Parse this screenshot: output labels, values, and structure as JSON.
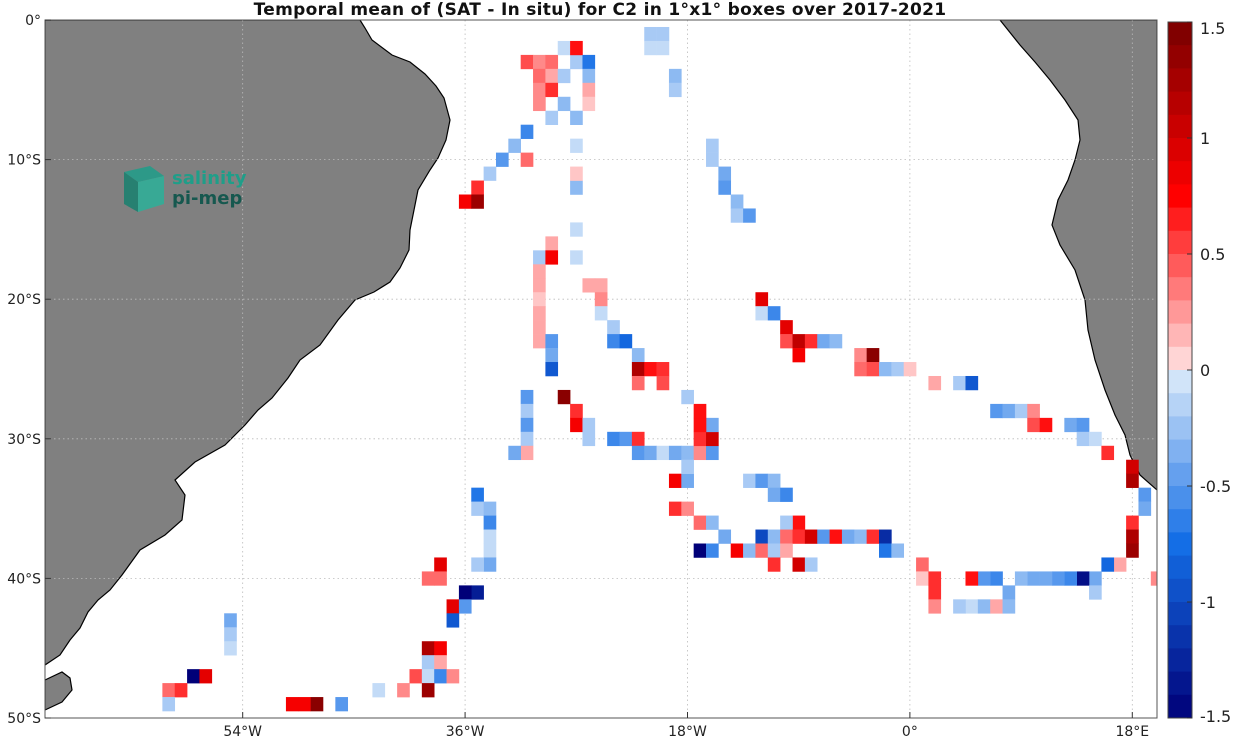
{
  "title": "Temporal mean of (SAT - In situ) for C2 in 1°x1° boxes over 2017-2021",
  "logo": {
    "line1": "salinity",
    "line2": "pi-mep"
  },
  "colors": {
    "land": "#808080",
    "ocean": "#ffffff",
    "grid": "#bbbbbb",
    "logo_teal": "#1f9e89",
    "logo_dark": "#16584f"
  },
  "chart_data": {
    "type": "heatmap",
    "title": "Temporal mean of (SAT - In situ) for C2 in 1°x1° boxes over 2017-2021",
    "x_extent": [
      -70,
      20
    ],
    "y_extent": [
      -50,
      0
    ],
    "x_ticks": [
      {
        "v": -54,
        "label": "54°W"
      },
      {
        "v": -36,
        "label": "36°W"
      },
      {
        "v": -18,
        "label": "18°W"
      },
      {
        "v": 0,
        "label": "0°"
      },
      {
        "v": 18,
        "label": "18°E"
      }
    ],
    "y_ticks": [
      {
        "v": 0,
        "label": "0°"
      },
      {
        "v": -10,
        "label": "10°S"
      },
      {
        "v": -20,
        "label": "20°S"
      },
      {
        "v": -30,
        "label": "30°S"
      },
      {
        "v": -40,
        "label": "40°S"
      },
      {
        "v": -50,
        "label": "50°S"
      }
    ],
    "colorbar": {
      "min": -1.5,
      "max": 1.5,
      "n_levels": 30,
      "ticks": [
        {
          "v": 1.5,
          "label": "1.5"
        },
        {
          "v": 1,
          "label": "1"
        },
        {
          "v": 0.5,
          "label": "0.5"
        },
        {
          "v": 0,
          "label": "0"
        },
        {
          "v": -0.5,
          "label": "-0.5"
        },
        {
          "v": -1,
          "label": "-1"
        },
        {
          "v": -1.5,
          "label": "-1.5"
        }
      ]
    },
    "grid": true,
    "cells": [
      [
        -31,
        -3,
        0.5
      ],
      [
        -30,
        -3,
        0.3
      ],
      [
        -29,
        -3,
        0.4
      ],
      [
        -28,
        -2,
        -0.1
      ],
      [
        -27,
        -3,
        -0.2
      ],
      [
        -27,
        -2,
        0.7
      ],
      [
        -26,
        -3,
        -0.7
      ],
      [
        -26,
        -4,
        -0.3
      ],
      [
        -30,
        -4,
        0.4
      ],
      [
        -29,
        -4,
        0.2
      ],
      [
        -28,
        -4,
        -0.2
      ],
      [
        -26,
        -5,
        0.2
      ],
      [
        -26,
        -6,
        0.1
      ],
      [
        -30,
        -5,
        0.3
      ],
      [
        -29,
        -5,
        0.6
      ],
      [
        -30,
        -6,
        0.3
      ],
      [
        -28,
        -6,
        -0.3
      ],
      [
        -29,
        -7,
        -0.2
      ],
      [
        -27,
        -7,
        -0.3
      ],
      [
        -27,
        -9,
        -0.1
      ],
      [
        -31,
        -8,
        -0.6
      ],
      [
        -32,
        -9,
        -0.3
      ],
      [
        -31,
        -10,
        0.4
      ],
      [
        -33,
        -10,
        -0.5
      ],
      [
        -34,
        -11,
        -0.2
      ],
      [
        -35,
        -12,
        0.6
      ],
      [
        -36,
        -13,
        0.8
      ],
      [
        -35,
        -13,
        1.3
      ],
      [
        -21,
        -1,
        -0.2
      ],
      [
        -21,
        -2,
        -0.1
      ],
      [
        -19,
        -4,
        -0.3
      ],
      [
        -19,
        -5,
        -0.2
      ],
      [
        -16,
        -9,
        -0.2
      ],
      [
        -16,
        -10,
        -0.2
      ],
      [
        -15,
        -11,
        -0.4
      ],
      [
        -15,
        -12,
        -0.5
      ],
      [
        -14,
        -13,
        -0.3
      ],
      [
        -14,
        -14,
        -0.2
      ],
      [
        -13,
        -14,
        -0.5
      ],
      [
        -27,
        -15,
        -0.1
      ],
      [
        -27,
        -17,
        -0.1
      ],
      [
        -27,
        -12,
        -0.3
      ],
      [
        -27,
        -11,
        0.1
      ],
      [
        -29,
        -16,
        0.2
      ],
      [
        -30,
        -17,
        -0.2
      ],
      [
        -29,
        -17,
        0.8
      ],
      [
        -30,
        -18,
        0.2
      ],
      [
        -30,
        -19,
        0.2
      ],
      [
        -30,
        -20,
        0.1
      ],
      [
        -30,
        -21,
        0.2
      ],
      [
        -30,
        -22,
        0.2
      ],
      [
        -30,
        -23,
        0.2
      ],
      [
        -26,
        -19,
        0.2
      ],
      [
        -25,
        -19,
        0.2
      ],
      [
        -25,
        -20,
        0.3
      ],
      [
        -25,
        -21,
        -0.1
      ],
      [
        -24,
        -22,
        -0.2
      ],
      [
        -24,
        -23,
        -0.6
      ],
      [
        -23,
        -23,
        -0.8
      ],
      [
        -22,
        -24,
        -0.3
      ],
      [
        -22,
        -25,
        1.2
      ],
      [
        -21,
        -25,
        0.7
      ],
      [
        -20,
        -25,
        0.6
      ],
      [
        -20,
        -26,
        0.5
      ],
      [
        -22,
        -26,
        0.4
      ],
      [
        -29,
        -23,
        -0.5
      ],
      [
        -29,
        -24,
        -0.4
      ],
      [
        -29,
        -25,
        -0.9
      ],
      [
        -12,
        -20,
        0.9
      ],
      [
        -12,
        -21,
        -0.1
      ],
      [
        -11,
        -21,
        -0.6
      ],
      [
        -10,
        -22,
        0.9
      ],
      [
        -10,
        -23,
        0.5
      ],
      [
        -9,
        -23,
        1.1
      ],
      [
        -8,
        -23,
        0.6
      ],
      [
        -7,
        -23,
        -0.4
      ],
      [
        -6,
        -23,
        -0.3
      ],
      [
        -9,
        -24,
        0.8
      ],
      [
        -4,
        -24,
        0.3
      ],
      [
        -3,
        -24,
        1.4
      ],
      [
        -4,
        -25,
        0.4
      ],
      [
        -3,
        -25,
        0.5
      ],
      [
        -2,
        -25,
        -0.3
      ],
      [
        -1,
        -25,
        -0.2
      ],
      [
        0,
        -25,
        0.1
      ],
      [
        2,
        -26,
        0.2
      ],
      [
        4,
        -26,
        -0.2
      ],
      [
        5,
        -26,
        -0.9
      ],
      [
        7,
        -28,
        -0.5
      ],
      [
        8,
        -28,
        -0.4
      ],
      [
        9,
        -28,
        -0.2
      ],
      [
        10,
        -28,
        0.3
      ],
      [
        10,
        -29,
        0.5
      ],
      [
        11,
        -29,
        0.7
      ],
      [
        13,
        -29,
        -0.4
      ],
      [
        14,
        -29,
        -0.5
      ],
      [
        14,
        -30,
        -0.2
      ],
      [
        15,
        -30,
        -0.1
      ],
      [
        16,
        -31,
        0.6
      ],
      [
        18,
        -32,
        1.0
      ],
      [
        18,
        -33,
        1.2
      ],
      [
        19,
        -34,
        -0.5
      ],
      [
        19,
        -35,
        -0.4
      ],
      [
        18,
        -36,
        0.6
      ],
      [
        18,
        -37,
        1.2
      ],
      [
        18,
        -38,
        1.3
      ],
      [
        17,
        -39,
        0.2
      ],
      [
        16,
        -39,
        -0.8
      ],
      [
        15,
        -40,
        -0.4
      ],
      [
        14,
        -40,
        -1.4
      ],
      [
        13,
        -40,
        -0.6
      ],
      [
        12,
        -40,
        -0.5
      ],
      [
        11,
        -40,
        -0.4
      ],
      [
        10,
        -40,
        -0.4
      ],
      [
        9,
        -40,
        -0.3
      ],
      [
        8,
        -41,
        -0.4
      ],
      [
        7,
        -40,
        -0.6
      ],
      [
        6,
        -40,
        -0.5
      ],
      [
        5,
        -40,
        0.7
      ],
      [
        15,
        -41,
        -0.2
      ],
      [
        5,
        -42,
        -0.1
      ],
      [
        6,
        -42,
        -0.3
      ],
      [
        4,
        -42,
        -0.2
      ],
      [
        7,
        -42,
        0.2
      ],
      [
        8,
        -42,
        -0.3
      ],
      [
        1,
        -39,
        0.4
      ],
      [
        1,
        -40,
        0.1
      ],
      [
        2,
        -40,
        0.6
      ],
      [
        2,
        -41,
        0.6
      ],
      [
        2,
        -42,
        0.3
      ],
      [
        20,
        -40,
        0.3
      ],
      [
        -31,
        -27,
        -0.5
      ],
      [
        -31,
        -28,
        -0.2
      ],
      [
        -31,
        -29,
        -0.5
      ],
      [
        -31,
        -30,
        -0.2
      ],
      [
        -31,
        -31,
        0.2
      ],
      [
        -32,
        -31,
        -0.4
      ],
      [
        -28,
        -27,
        1.4
      ],
      [
        -27,
        -28,
        0.6
      ],
      [
        -27,
        -29,
        0.8
      ],
      [
        -26,
        -29,
        -0.2
      ],
      [
        -26,
        -30,
        -0.2
      ],
      [
        -24,
        -30,
        -0.6
      ],
      [
        -23,
        -30,
        -0.5
      ],
      [
        -22,
        -30,
        0.6
      ],
      [
        -22,
        -31,
        -0.5
      ],
      [
        -21,
        -31,
        -0.4
      ],
      [
        -20,
        -31,
        -0.1
      ],
      [
        -19,
        -31,
        -0.4
      ],
      [
        -18,
        -31,
        -0.3
      ],
      [
        -17,
        -31,
        0.3
      ],
      [
        -16,
        -31,
        -0.5
      ],
      [
        -17,
        -30,
        0.6
      ],
      [
        -16,
        -30,
        1.0
      ],
      [
        -16,
        -29,
        -0.4
      ],
      [
        -17,
        -29,
        0.7
      ],
      [
        -17,
        -28,
        0.7
      ],
      [
        -18,
        -27,
        -0.2
      ],
      [
        -19,
        -33,
        0.8
      ],
      [
        -18,
        -33,
        -0.4
      ],
      [
        -18,
        -32,
        -0.2
      ],
      [
        -19,
        -35,
        0.6
      ],
      [
        -18,
        -35,
        0.3
      ],
      [
        -17,
        -36,
        0.4
      ],
      [
        -16,
        -36,
        -0.3
      ],
      [
        -15,
        -37,
        -0.4
      ],
      [
        -35,
        -34,
        -0.7
      ],
      [
        -35,
        -35,
        -0.2
      ],
      [
        -34,
        -35,
        -0.3
      ],
      [
        -34,
        -36,
        -0.6
      ],
      [
        -34,
        -37,
        -0.1
      ],
      [
        -34,
        -38,
        -0.1
      ],
      [
        -34,
        -39,
        -0.4
      ],
      [
        -35,
        -39,
        -0.2
      ],
      [
        -38,
        -39,
        0.9
      ],
      [
        -39,
        -40,
        0.4
      ],
      [
        -38,
        -40,
        0.4
      ],
      [
        -35,
        -41,
        -1.3
      ],
      [
        -36,
        -41,
        -1.5
      ],
      [
        -37,
        -42,
        0.9
      ],
      [
        -36,
        -42,
        -0.5
      ],
      [
        -37,
        -43,
        -0.9
      ],
      [
        -55,
        -43,
        -0.4
      ],
      [
        -55,
        -44,
        -0.2
      ],
      [
        -55,
        -45,
        -0.1
      ],
      [
        -58,
        -47,
        -1.5
      ],
      [
        -57,
        -47,
        0.9
      ],
      [
        -60,
        -48,
        0.4
      ],
      [
        -59,
        -48,
        0.6
      ],
      [
        -60,
        -49,
        -0.2
      ],
      [
        -39,
        -45,
        1.2
      ],
      [
        -38,
        -45,
        0.8
      ],
      [
        -39,
        -46,
        -0.2
      ],
      [
        -38,
        -46,
        0.2
      ],
      [
        -40,
        -47,
        0.5
      ],
      [
        -39,
        -47,
        -0.1
      ],
      [
        -38,
        -47,
        -0.6
      ],
      [
        -37,
        -47,
        0.3
      ],
      [
        -41,
        -48,
        0.3
      ],
      [
        -39,
        -48,
        1.3
      ],
      [
        -43,
        -48,
        -0.1
      ],
      [
        -50,
        -49,
        0.8
      ],
      [
        -49,
        -49,
        0.8
      ],
      [
        -48,
        -49,
        1.4
      ],
      [
        -46,
        -49,
        -0.5
      ],
      [
        -13,
        -33,
        -0.2
      ],
      [
        -12,
        -33,
        -0.5
      ],
      [
        -11,
        -33,
        -0.3
      ],
      [
        -11,
        -34,
        -0.4
      ],
      [
        -10,
        -34,
        -0.6
      ],
      [
        -9,
        -36,
        0.7
      ],
      [
        -10,
        -36,
        -0.2
      ],
      [
        -12,
        -37,
        -1.0
      ],
      [
        -11,
        -37,
        -0.3
      ],
      [
        -10,
        -37,
        0.4
      ],
      [
        -9,
        -37,
        0.6
      ],
      [
        -8,
        -37,
        1.0
      ],
      [
        -7,
        -37,
        -0.5
      ],
      [
        -6,
        -37,
        0.7
      ],
      [
        -5,
        -37,
        -0.4
      ],
      [
        -4,
        -37,
        -0.3
      ],
      [
        -3,
        -37,
        0.6
      ],
      [
        -2,
        -37,
        -1.2
      ],
      [
        -2,
        -38,
        -0.7
      ],
      [
        -1,
        -38,
        -0.3
      ],
      [
        -17,
        -38,
        -1.5
      ],
      [
        -16,
        -38,
        -0.6
      ],
      [
        -14,
        -38,
        0.8
      ],
      [
        -13,
        -38,
        -0.3
      ],
      [
        -12,
        -38,
        0.4
      ],
      [
        -11,
        -38,
        -0.2
      ],
      [
        -10,
        -38,
        0.2
      ],
      [
        -11,
        -39,
        0.6
      ],
      [
        -9,
        -39,
        1.0
      ],
      [
        -8,
        -39,
        -0.2
      ],
      [
        -20,
        -1,
        -0.2
      ],
      [
        -20,
        -2,
        -0.1
      ]
    ]
  }
}
